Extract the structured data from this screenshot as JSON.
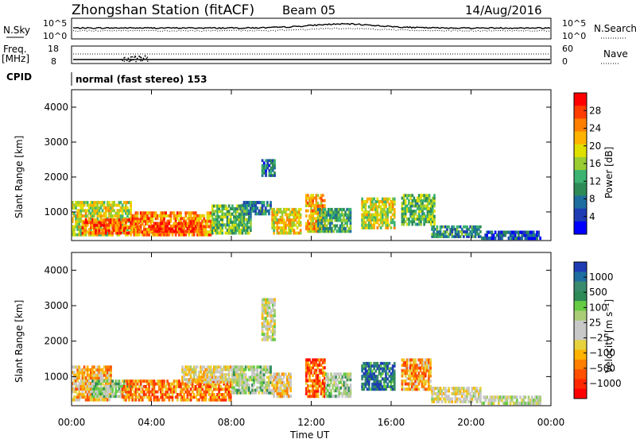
{
  "header": {
    "title": "Zhongshan Station (fitACF)",
    "beam": "Beam 05",
    "date": "14/Aug/2016"
  },
  "top_panels": {
    "nsky_label": "N.Sky",
    "nsky_ticks": [
      "10^5",
      "10^0"
    ],
    "nsearch_label": "N.Search",
    "nsearch_ticks": [
      "10^5",
      "10^0"
    ],
    "freq_label_1": "Freq.",
    "freq_label_2": "[MHz]",
    "freq_ticks": [
      "18",
      "8"
    ],
    "nave_label": "Nave",
    "nave_ticks": [
      "60",
      "0"
    ],
    "cpid_label": "CPID",
    "cpid_text": "normal (fast stereo) 153"
  },
  "panels": {
    "ylabel": "Slant Range [km]",
    "yticks": [
      "4000",
      "3000",
      "2000",
      "1000"
    ],
    "xticks": [
      "00:00",
      "04:00",
      "08:00",
      "12:00",
      "16:00",
      "20:00",
      "00:00"
    ],
    "xlabel": "Time UT"
  },
  "power_scale": {
    "label": "Power [dB]",
    "ticks": [
      "28",
      "24",
      "20",
      "16",
      "12",
      "8",
      "4"
    ],
    "colors": [
      "#ff0000",
      "#ff3c00",
      "#ff7f00",
      "#ffb300",
      "#e0e000",
      "#9acd32",
      "#3cb371",
      "#2e8b57",
      "#1e6ea0",
      "#1e3cb4",
      "#0000ff"
    ]
  },
  "velocity_scale": {
    "label": "Velocity [m s⁻¹]",
    "ticks": [
      "1000",
      "500",
      "100",
      "25",
      "−25",
      "−100",
      "−500",
      "−1000"
    ],
    "colors": [
      "#1e3cb4",
      "#1e6ea0",
      "#3a8a6e",
      "#2e8b57",
      "#66cc44",
      "#aacc77",
      "#c8c8c8",
      "#c8c8c8",
      "#e6d23c",
      "#ffb300",
      "#ff8000",
      "#ff5000",
      "#ff2800",
      "#ff0000"
    ]
  },
  "chart_data": [
    {
      "type": "heatmap",
      "title": "Power",
      "xlabel": "Time UT",
      "ylabel": "Slant Range [km]",
      "xlim": [
        0,
        24
      ],
      "ylim": [
        180,
        4500
      ],
      "colorbar_label": "Power [dB]",
      "colorbar_range": [
        0,
        32
      ],
      "blobs": [
        {
          "t": [
            0.0,
            3.0
          ],
          "r": [
            300,
            1300
          ],
          "v": 18
        },
        {
          "t": [
            0.5,
            3.5
          ],
          "r": [
            350,
            800
          ],
          "v": 26
        },
        {
          "t": [
            3.0,
            7.0
          ],
          "r": [
            300,
            1000
          ],
          "v": 24
        },
        {
          "t": [
            4.0,
            6.5
          ],
          "r": [
            400,
            700
          ],
          "v": 28
        },
        {
          "t": [
            7.0,
            9.0
          ],
          "r": [
            350,
            1200
          ],
          "v": 14
        },
        {
          "t": [
            8.5,
            10.0
          ],
          "r": [
            900,
            1300
          ],
          "v": 10
        },
        {
          "t": [
            9.5,
            10.2
          ],
          "r": [
            2000,
            2500
          ],
          "v": 8
        },
        {
          "t": [
            10.0,
            11.5
          ],
          "r": [
            350,
            1100
          ],
          "v": 20
        },
        {
          "t": [
            11.7,
            12.7
          ],
          "r": [
            400,
            1500
          ],
          "v": 22
        },
        {
          "t": [
            12.3,
            14.0
          ],
          "r": [
            400,
            1100
          ],
          "v": 12
        },
        {
          "t": [
            14.5,
            16.2
          ],
          "r": [
            500,
            1400
          ],
          "v": 18
        },
        {
          "t": [
            16.5,
            18.2
          ],
          "r": [
            600,
            1500
          ],
          "v": 14
        },
        {
          "t": [
            18.0,
            20.5
          ],
          "r": [
            250,
            600
          ],
          "v": 10
        },
        {
          "t": [
            20.5,
            23.5
          ],
          "r": [
            200,
            450
          ],
          "v": 6
        }
      ]
    },
    {
      "type": "heatmap",
      "title": "Velocity",
      "xlabel": "Time UT",
      "ylabel": "Slant Range [km]",
      "xlim": [
        0,
        24
      ],
      "ylim": [
        180,
        4500
      ],
      "colorbar_label": "Velocity [m s⁻¹]",
      "colorbar_range": [
        -1000,
        1000
      ],
      "blobs": [
        {
          "t": [
            0.0,
            2.0
          ],
          "r": [
            300,
            1300
          ],
          "v": -300
        },
        {
          "t": [
            1.0,
            3.0
          ],
          "r": [
            400,
            900
          ],
          "v": 200
        },
        {
          "t": [
            2.5,
            8.0
          ],
          "r": [
            300,
            900
          ],
          "v": -500
        },
        {
          "t": [
            5.5,
            8.5
          ],
          "r": [
            800,
            1300
          ],
          "v": -150
        },
        {
          "t": [
            8.0,
            10.0
          ],
          "r": [
            500,
            1300
          ],
          "v": 150
        },
        {
          "t": [
            9.5,
            10.2
          ],
          "r": [
            2000,
            3200
          ],
          "v": -10
        },
        {
          "t": [
            10.0,
            11.0
          ],
          "r": [
            400,
            1100
          ],
          "v": -200
        },
        {
          "t": [
            11.7,
            12.7
          ],
          "r": [
            400,
            1500
          ],
          "v": -600
        },
        {
          "t": [
            12.7,
            14.0
          ],
          "r": [
            400,
            1100
          ],
          "v": 200
        },
        {
          "t": [
            14.5,
            16.2
          ],
          "r": [
            600,
            1400
          ],
          "v": 700
        },
        {
          "t": [
            16.5,
            18.0
          ],
          "r": [
            600,
            1500
          ],
          "v": -400
        },
        {
          "t": [
            18.0,
            20.5
          ],
          "r": [
            250,
            700
          ],
          "v": -40
        },
        {
          "t": [
            20.5,
            23.5
          ],
          "r": [
            200,
            450
          ],
          "v": 80
        }
      ]
    }
  ]
}
